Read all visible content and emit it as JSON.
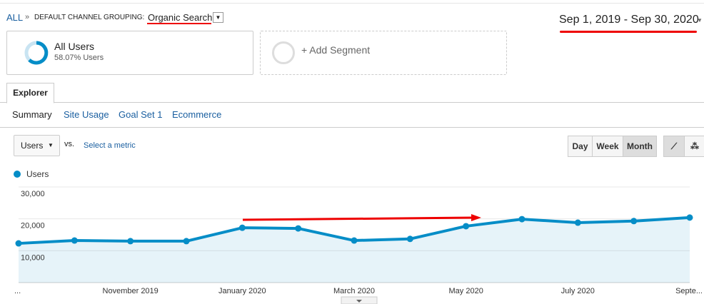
{
  "breadcrumb": {
    "all": "ALL",
    "separator": "»",
    "dimension": "DEFAULT CHANNEL GROUPING:",
    "value": "Organic Search"
  },
  "date_range": "Sep 1, 2019 - Sep 30, 2020",
  "segments": [
    {
      "name": "All Users",
      "detail": "58.07% Users"
    },
    {
      "name": "+ Add Segment"
    }
  ],
  "tab": "Explorer",
  "subtabs": [
    "Summary",
    "Site Usage",
    "Goal Set 1",
    "Ecommerce"
  ],
  "metric_select": "Users",
  "vs": "vs.",
  "select_metric": "Select a metric",
  "granularity": [
    "Day",
    "Week",
    "Month"
  ],
  "chart_data": {
    "type": "line",
    "categories": [
      "...",
      null,
      "November 2019",
      null,
      "January 2020",
      null,
      "March 2020",
      null,
      "May 2020",
      null,
      "July 2020",
      null,
      "Septe..."
    ],
    "series": [
      {
        "name": "Users",
        "color": "#058dc7",
        "values": [
          12300,
          13200,
          13000,
          13000,
          17200,
          17000,
          13200,
          13700,
          17700,
          19900,
          18800,
          19300,
          20400
        ]
      }
    ],
    "ylim": [
      0,
      30000
    ],
    "yticks": [
      {
        "value": 10000,
        "label": "10,000"
      },
      {
        "value": 20000,
        "label": "20,000"
      },
      {
        "value": 30000,
        "label": "30,000"
      }
    ],
    "grid": true,
    "area": true
  }
}
